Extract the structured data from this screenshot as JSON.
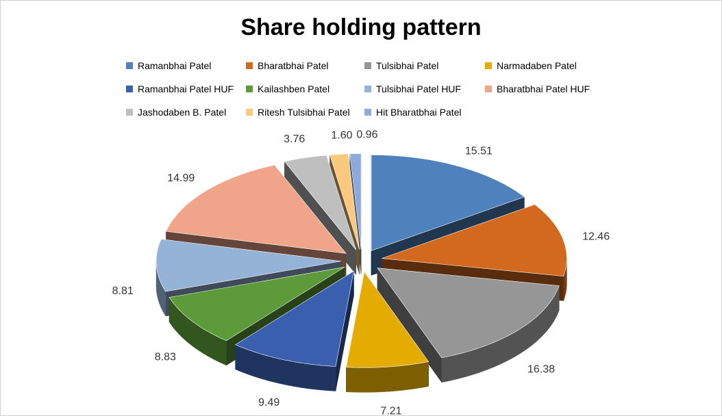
{
  "chart_data": {
    "type": "pie",
    "title": "Share holding pattern",
    "categories": [
      "Ramanbhai Patel",
      "Bharatbhai Patel",
      "Tulsibhai Patel",
      "Narmadaben Patel",
      "Ramanbhai Patel HUF",
      "Kailashben Patel",
      "Tulsibhai Patel HUF",
      "Bharatbhai Patel HUF",
      "Jashodaben B. Patel",
      "Ritesh Tulsibhai Patel",
      "Hit Bharatbhai Patel"
    ],
    "values": [
      15.51,
      12.46,
      16.38,
      7.21,
      9.49,
      8.83,
      8.81,
      14.99,
      3.76,
      1.6,
      0.96
    ],
    "data_labels": [
      "15.51",
      "12.46",
      "16.38",
      "7.21",
      "9.49",
      "8.83",
      "8.81",
      "14.99",
      "3.76",
      "1.60",
      "0.96"
    ],
    "colors": [
      "#4F81BD",
      "#C0504D",
      "#9BBB59",
      "#8064A2"
    ],
    "slice_colors": [
      "#4F81BD",
      "#D2691E",
      "#969696",
      "#E5AC00",
      "#3A5FAF",
      "#5D9A3A",
      "#95B3D7",
      "#F0A58A",
      "#BFBFBF",
      "#FAC97D",
      "#8EA9DB"
    ],
    "exploded": true,
    "legend_position": "top",
    "start_angle_deg": 0,
    "direction": "clockwise",
    "style": "3d-exploded"
  }
}
